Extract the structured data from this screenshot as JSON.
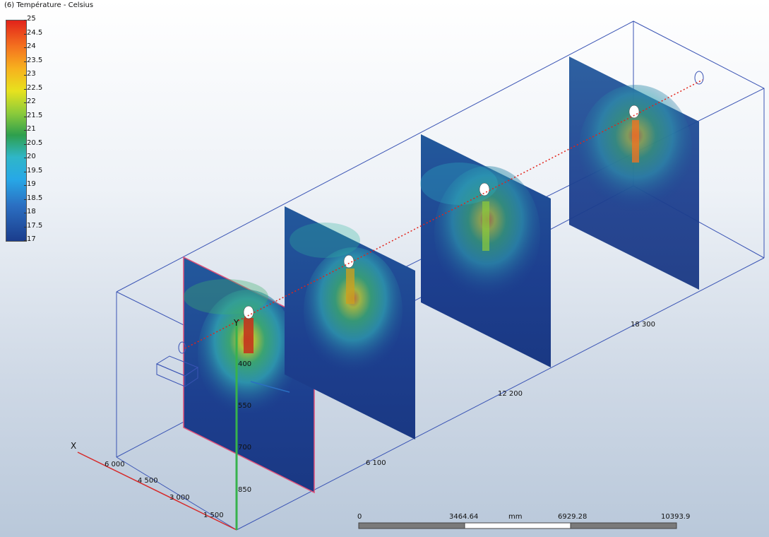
{
  "legend": {
    "title": "(6) Température - Celsius",
    "ticks": [
      "25",
      "24.5",
      "24",
      "23.5",
      "23",
      "22.5",
      "22",
      "21.5",
      "21",
      "20.5",
      "20",
      "19.5",
      "19",
      "18.5",
      "18",
      "17.5",
      "17"
    ]
  },
  "axes": {
    "x_label": "X",
    "y_label": "Y",
    "x_ticks": [
      "6 000",
      "4 500",
      "3 000",
      "1 500"
    ],
    "y_ticks": [
      "400",
      "550",
      "700",
      "850"
    ],
    "z_ticks": [
      "6 100",
      "12 200",
      "18 300"
    ]
  },
  "scale_bar": {
    "labels": [
      "0",
      "3464.64",
      "6929.28",
      "10393.9"
    ],
    "unit": "mm"
  },
  "colors": {
    "box_edge": "#3a54b4",
    "x_axis": "#d62a2a",
    "y_axis": "#37b24d",
    "plane_border": "#e0507a",
    "flow_line": "#e2231a"
  }
}
